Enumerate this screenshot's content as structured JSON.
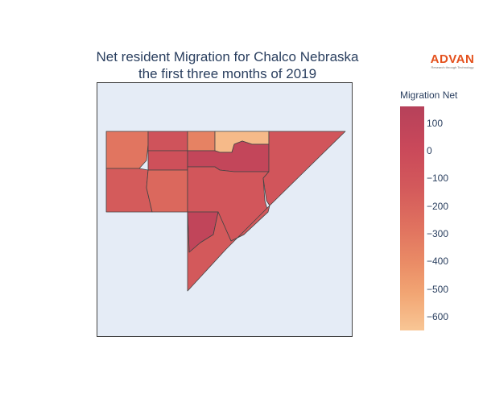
{
  "title": {
    "line1": "Net resident Migration for Chalco Nebraska",
    "line2": "the first three months of 2019"
  },
  "logo": {
    "name": "ADVAN",
    "tagline": "Research through Technology"
  },
  "colorbar": {
    "title": "Migration Net",
    "ticks": [
      "100",
      "0",
      "−100",
      "−200",
      "−300",
      "−400",
      "−500",
      "−600"
    ],
    "tick_values": [
      100,
      0,
      -100,
      -200,
      -300,
      -400,
      -500,
      -600
    ],
    "range": [
      -650,
      160
    ],
    "colorscale": [
      "#f8c695",
      "#f2a674",
      "#ea8c66",
      "#e0725f",
      "#d3595b",
      "#c9485a",
      "#b6415a"
    ]
  },
  "map": {
    "background": "#e5ecf6",
    "region_border": "#444444",
    "regions": [
      {
        "name": "region-northwest",
        "value": -260
      },
      {
        "name": "region-north-center-west",
        "value": -60
      },
      {
        "name": "region-center-small",
        "value": -40
      },
      {
        "name": "region-north-center",
        "value": -330
      },
      {
        "name": "region-northeast-notch",
        "value": -600
      },
      {
        "name": "region-upper-middle-band",
        "value": 70
      },
      {
        "name": "region-west",
        "value": -120
      },
      {
        "name": "region-west-center",
        "value": -190
      },
      {
        "name": "region-central",
        "value": -90
      },
      {
        "name": "region-east-wedge",
        "value": -80
      },
      {
        "name": "region-inner-south",
        "value": 80
      },
      {
        "name": "region-south-tail",
        "value": -110
      }
    ]
  }
}
